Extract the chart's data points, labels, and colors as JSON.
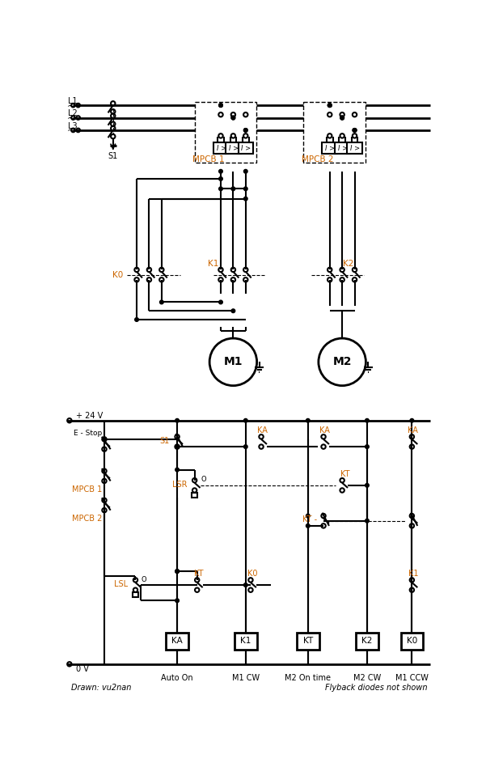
{
  "bg_color": "#ffffff",
  "line_color": "#000000",
  "label_color": "#cc6600",
  "fig_width": 6.01,
  "fig_height": 9.69,
  "dpi": 100,
  "bottom_text_left": "Drawn: vu2nan",
  "bottom_text_right": "Flyback diodes not shown",
  "bottom_labels": [
    "Auto On",
    "M1 CW",
    "M2 On time",
    "M2 CW",
    "M1 CCW"
  ],
  "voltage_pos": "+ 24 V",
  "voltage_neg": "0 V",
  "phase_labels": [
    "L1",
    "L2",
    "L3"
  ]
}
